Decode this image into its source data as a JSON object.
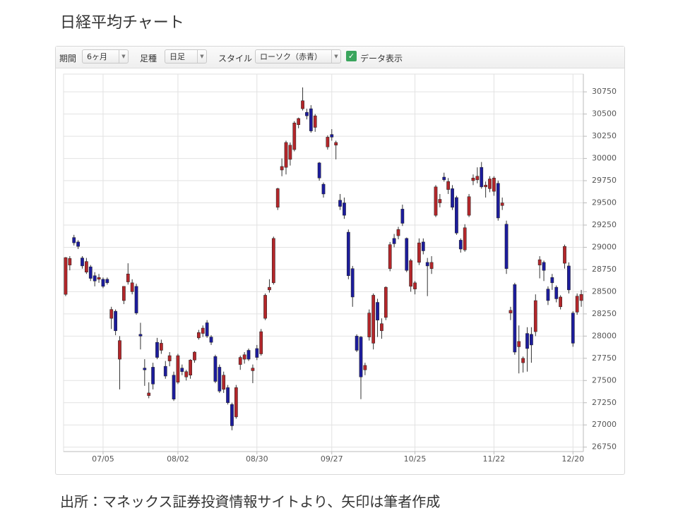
{
  "page_title": "日経平均チャート",
  "toolbar": {
    "period_label": "期間",
    "period_value": "6ヶ月",
    "bar_label": "足種",
    "bar_value": "日足",
    "style_label": "スタイル",
    "style_value": "ローソク（赤青）",
    "data_display": "データ表示"
  },
  "footer": "出所：マネックス証券投資情報サイトより、矢印は筆者作成",
  "chart_data": {
    "type": "candlestick",
    "categories": [
      null,
      null,
      null,
      null,
      null,
      null,
      null,
      null,
      null,
      "07/05",
      null,
      null,
      null,
      null,
      null,
      null,
      null,
      null,
      null,
      null,
      null,
      null,
      null,
      null,
      null,
      null,
      null,
      "08/02",
      null,
      null,
      null,
      null,
      null,
      null,
      null,
      null,
      null,
      null,
      null,
      null,
      null,
      null,
      null,
      null,
      null,
      null,
      "08/30",
      null,
      null,
      null,
      null,
      null,
      null,
      null,
      null,
      null,
      null,
      null,
      null,
      null,
      null,
      null,
      null,
      null,
      "09/27",
      null,
      null,
      null,
      null,
      null,
      null,
      null,
      null,
      null,
      null,
      null,
      null,
      null,
      null,
      null,
      null,
      null,
      null,
      null,
      "10/25",
      null,
      null,
      null,
      null,
      null,
      null,
      null,
      null,
      null,
      null,
      null,
      null,
      null,
      null,
      null,
      null,
      null,
      null,
      "11/22",
      null,
      null,
      null,
      null,
      null,
      null,
      null,
      null,
      null,
      null,
      null,
      null,
      null,
      null,
      null,
      null,
      null,
      null,
      "12/20",
      null,
      null
    ],
    "open": [
      28470,
      28800,
      29110,
      29060,
      28880,
      28720,
      28780,
      28680,
      28640,
      28640,
      28640,
      28200,
      28280,
      27740,
      28400,
      28610,
      28500,
      28560,
      28020,
      27640,
      27330,
      27650,
      27930,
      27840,
      27660,
      27720,
      27560,
      27480,
      27640,
      27540,
      27560,
      27730,
      27980,
      28030,
      28150,
      27990,
      27770,
      27650,
      27400,
      27420,
      27230,
      27090,
      27680,
      27740,
      27840,
      27610,
      27860,
      27800,
      28200,
      28520,
      28600,
      29450,
      29870,
      29900,
      29990,
      30100,
      30380,
      30560,
      30520,
      30560,
      30350,
      29950,
      29710,
      30130,
      30270,
      30150,
      29530,
      29500,
      29170,
      28760,
      28000,
      27990,
      27620,
      27990,
      27920,
      28380,
      28060,
      28210,
      28760,
      29100,
      29130,
      29430,
      29100,
      28560,
      28530,
      28830,
      29060,
      28830,
      28760,
      29360,
      29500,
      29790,
      29650,
      29660,
      29560,
      29080,
      28970,
      29360,
      29750,
      29760,
      29900,
      29680,
      29660,
      29630,
      29720,
      29470,
      29260,
      28260,
      28580,
      27880,
      27700,
      28030,
      28020,
      28050,
      28800,
      28830,
      28530,
      28660,
      28550,
      28330,
      28820,
      28790,
      28260,
      28270,
      28400
    ],
    "high": [
      28890,
      28900,
      29140,
      29080,
      28900,
      28880,
      28800,
      28720,
      28700,
      28660,
      28660,
      28330,
      28300,
      28000,
      28560,
      28820,
      28640,
      28590,
      28150,
      27740,
      27480,
      27700,
      27980,
      27960,
      27720,
      27820,
      27600,
      27800,
      27680,
      27620,
      27740,
      27830,
      28070,
      28120,
      28180,
      28010,
      27790,
      27680,
      27600,
      27450,
      27250,
      27450,
      27780,
      27820,
      27860,
      27680,
      27900,
      28080,
      28480,
      28640,
      29120,
      29670,
      30000,
      30200,
      30180,
      30420,
      30460,
      30800,
      30560,
      30600,
      30500,
      29960,
      29730,
      30260,
      30330,
      30200,
      29600,
      29560,
      29200,
      28790,
      28020,
      28000,
      27700,
      28300,
      28480,
      28420,
      28200,
      28560,
      29060,
      29150,
      29230,
      29480,
      29110,
      28870,
      28620,
      29100,
      29100,
      28880,
      28900,
      29700,
      29600,
      29840,
      29780,
      29700,
      29580,
      29100,
      29260,
      29600,
      29820,
      29900,
      29960,
      29740,
      29800,
      29800,
      29750,
      29560,
      29300,
      28330,
      28600,
      28120,
      27770,
      28100,
      28100,
      28470,
      28900,
      28850,
      28560,
      28700,
      28570,
      28460,
      29030,
      28830,
      28280,
      28480,
      28520
    ],
    "low": [
      28450,
      28740,
      29020,
      28980,
      28760,
      28700,
      28620,
      28560,
      28600,
      28540,
      28580,
      28080,
      28010,
      27400,
      28360,
      28580,
      28470,
      28240,
      27850,
      27440,
      27300,
      27400,
      27740,
      27800,
      27520,
      27660,
      27270,
      27460,
      27560,
      27500,
      27520,
      27700,
      27960,
      27990,
      27980,
      27900,
      27470,
      27360,
      27360,
      27230,
      26940,
      27070,
      27620,
      27690,
      27720,
      27470,
      27730,
      27780,
      28180,
      28490,
      28580,
      29420,
      29800,
      29820,
      29920,
      30080,
      30340,
      30540,
      30440,
      30290,
      30300,
      29750,
      29560,
      30100,
      30200,
      29990,
      29420,
      29320,
      28640,
      28330,
      27820,
      27290,
      27560,
      27950,
      27850,
      27990,
      27970,
      28180,
      28730,
      29000,
      29090,
      29240,
      28720,
      28500,
      28470,
      28800,
      28920,
      28450,
      28700,
      29340,
      29450,
      29740,
      29600,
      29420,
      29140,
      28940,
      28950,
      29340,
      29700,
      29720,
      29660,
      29560,
      29620,
      29580,
      29300,
      29420,
      28700,
      28180,
      27790,
      27580,
      27590,
      27600,
      27700,
      28000,
      28650,
      28620,
      28350,
      28520,
      28380,
      28300,
      28760,
      28480,
      27880,
      28240,
      28330
    ],
    "close": [
      28884,
      28874,
      29050,
      29010,
      28790,
      28840,
      28650,
      28620,
      28660,
      28560,
      28600,
      28300,
      28060,
      27950,
      28560,
      28700,
      28600,
      28260,
      28000,
      27620,
      27360,
      27460,
      27760,
      27920,
      27550,
      27780,
      27290,
      27780,
      27600,
      27600,
      27730,
      27820,
      28040,
      28090,
      28000,
      27930,
      27490,
      27380,
      27560,
      27250,
      26990,
      27420,
      27760,
      27790,
      27740,
      27640,
      27760,
      28050,
      28460,
      28550,
      29100,
      29660,
      29910,
      30180,
      30150,
      30400,
      30450,
      30650,
      30480,
      30310,
      30480,
      29780,
      29600,
      30240,
      30240,
      30180,
      29460,
      29360,
      28680,
      28440,
      27840,
      27540,
      27670,
      28260,
      28460,
      28180,
      28140,
      28550,
      29030,
      29040,
      29200,
      29270,
      28740,
      28850,
      28600,
      29050,
      28960,
      28790,
      28830,
      29680,
      29540,
      29760,
      29740,
      29450,
      29160,
      28980,
      29220,
      29570,
      29780,
      29800,
      29680,
      29700,
      29770,
      29780,
      29330,
      29500,
      28760,
      28290,
      27820,
      27940,
      27750,
      27860,
      27900,
      28400,
      28860,
      28740,
      28400,
      28600,
      28420,
      28440,
      29010,
      28520,
      27920,
      28450,
      28470
    ],
    "up_color": "#b3262a",
    "down_color": "#1c1c9c",
    "ylim": [
      26700,
      30950
    ],
    "yticks": [
      26750,
      27000,
      27250,
      27500,
      27750,
      28000,
      28250,
      28500,
      28750,
      29000,
      29250,
      29500,
      29750,
      30000,
      30250,
      30500,
      30750
    ],
    "grid": true
  }
}
